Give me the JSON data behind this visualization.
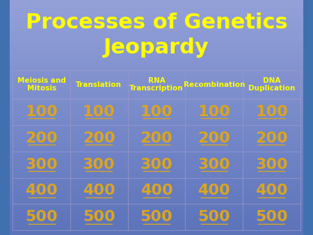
{
  "title_line1": "Processes of Genetics",
  "title_line2": "Jeopardy",
  "title_color": "#FFFF00",
  "title_fontsize": 22,
  "categories": [
    "Meiosis and\nMitosis",
    "Translation",
    "RNA\nTranscription",
    "Recombination",
    "DNA\nDuplication"
  ],
  "category_color": "#FFFF00",
  "category_fontsize": 7.5,
  "values": [
    100,
    200,
    300,
    400,
    500
  ],
  "value_color": "#DAA520",
  "value_fontsize": 16,
  "grid_color": "#9999cc",
  "num_cols": 5,
  "num_rows": 5
}
